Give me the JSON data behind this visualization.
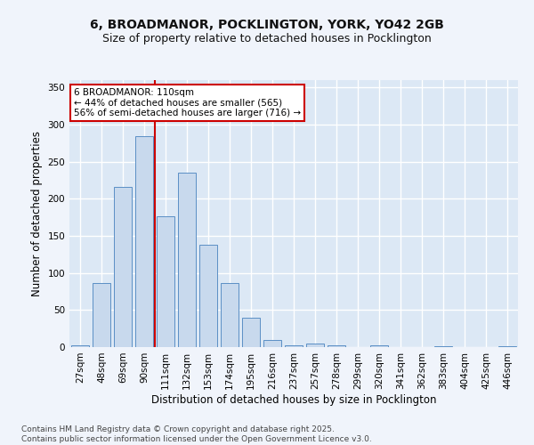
{
  "title_line1": "6, BROADMANOR, POCKLINGTON, YORK, YO42 2GB",
  "title_line2": "Size of property relative to detached houses in Pocklington",
  "xlabel": "Distribution of detached houses by size in Pocklington",
  "ylabel": "Number of detached properties",
  "categories": [
    "27sqm",
    "48sqm",
    "69sqm",
    "90sqm",
    "111sqm",
    "132sqm",
    "153sqm",
    "174sqm",
    "195sqm",
    "216sqm",
    "237sqm",
    "257sqm",
    "278sqm",
    "299sqm",
    "320sqm",
    "341sqm",
    "362sqm",
    "383sqm",
    "404sqm",
    "425sqm",
    "446sqm"
  ],
  "values": [
    3,
    86,
    216,
    285,
    177,
    235,
    138,
    86,
    40,
    10,
    3,
    5,
    3,
    0,
    3,
    0,
    0,
    1,
    0,
    0,
    1
  ],
  "bar_color": "#c8d9ed",
  "bar_edge_color": "#5b8fc5",
  "bg_color": "#dce8f5",
  "grid_color": "#ffffff",
  "vline_x_index": 4,
  "vline_color": "#cc0000",
  "annotation_text": "6 BROADMANOR: 110sqm\n← 44% of detached houses are smaller (565)\n56% of semi-detached houses are larger (716) →",
  "annotation_box_color": "#ffffff",
  "annotation_border_color": "#cc0000",
  "ylim": [
    0,
    360
  ],
  "yticks": [
    0,
    50,
    100,
    150,
    200,
    250,
    300,
    350
  ],
  "footer_text": "Contains HM Land Registry data © Crown copyright and database right 2025.\nContains public sector information licensed under the Open Government Licence v3.0.",
  "title_fontsize": 10,
  "subtitle_fontsize": 9,
  "axis_label_fontsize": 8.5,
  "tick_fontsize": 7.5,
  "annotation_fontsize": 7.5,
  "footer_fontsize": 6.5,
  "fig_bg_color": "#f0f4fb"
}
